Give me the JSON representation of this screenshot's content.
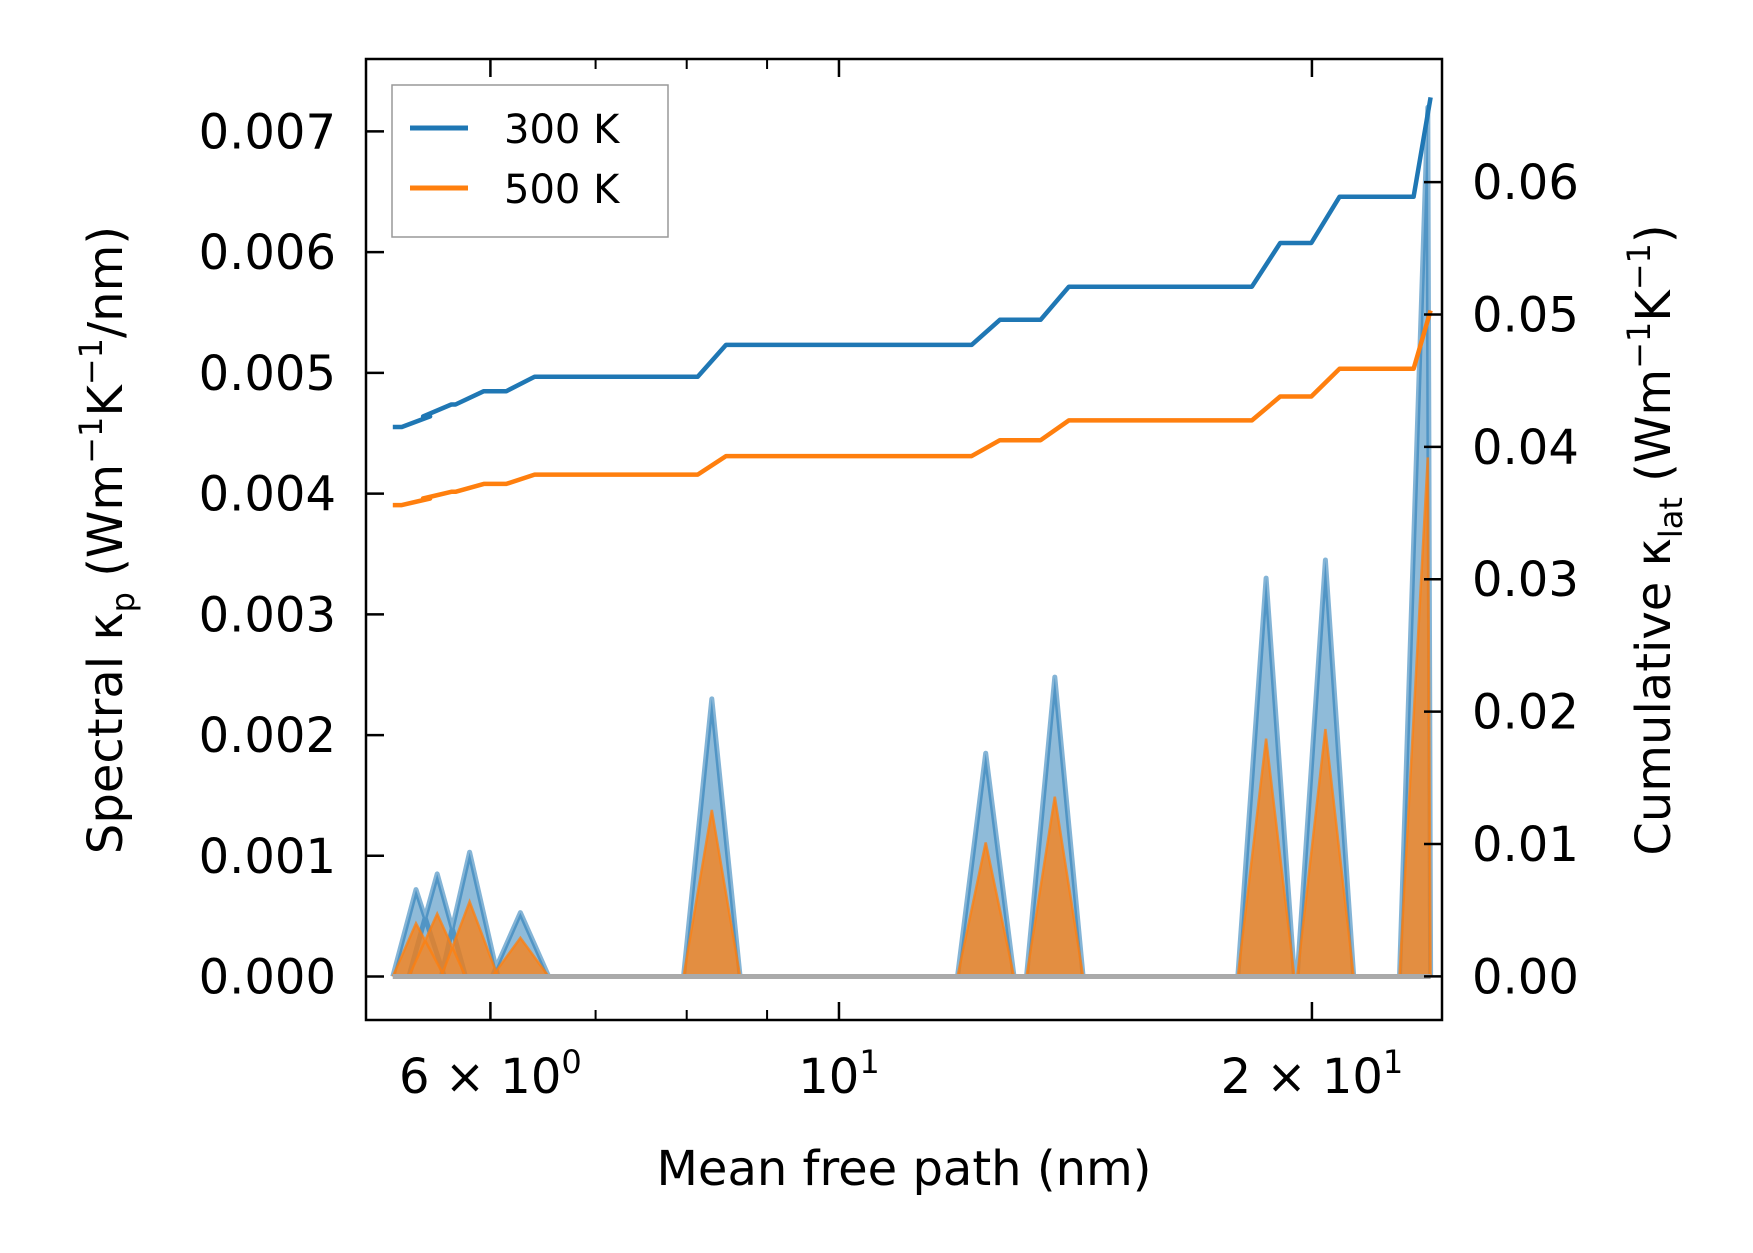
{
  "chart_data": {
    "type": "line",
    "xscale": "log",
    "xlim": [
      5.0,
      24.2
    ],
    "ylim": [
      -0.00036,
      0.0076
    ],
    "y2lim": [
      -0.0033,
      0.0693
    ],
    "xlabel": "Mean free path (nm)",
    "ylabel": {
      "prefix": "Spectral κ",
      "sub": "p",
      "unit_open": " (Wm",
      "sup1": "−1",
      "unit_mid": "K",
      "sup2": "−1",
      "unit_close": "/nm)"
    },
    "y2label": {
      "prefix": "Cumulative κ",
      "sub": "lat",
      "unit_open": " (Wm",
      "sup1": "−1",
      "unit_mid": "K",
      "sup2": "−1",
      "unit_close": ")"
    },
    "x_ticks": [
      {
        "value": 6,
        "mantissa": "6",
        "base": "10",
        "exp": "0"
      },
      {
        "value": 10,
        "mantissa": "",
        "base": "10",
        "exp": "1"
      },
      {
        "value": 20,
        "mantissa": "2",
        "base": "10",
        "exp": "1"
      }
    ],
    "x_minor_ticks": [
      7,
      8,
      9
    ],
    "y_ticks": [
      {
        "value": 0.0,
        "label": "0.000"
      },
      {
        "value": 0.001,
        "label": "0.001"
      },
      {
        "value": 0.002,
        "label": "0.002"
      },
      {
        "value": 0.003,
        "label": "0.003"
      },
      {
        "value": 0.004,
        "label": "0.004"
      },
      {
        "value": 0.005,
        "label": "0.005"
      },
      {
        "value": 0.006,
        "label": "0.006"
      },
      {
        "value": 0.007,
        "label": "0.007"
      }
    ],
    "y2_ticks": [
      {
        "value": 0.0,
        "label": "0.00"
      },
      {
        "value": 0.01,
        "label": "0.01"
      },
      {
        "value": 0.02,
        "label": "0.02"
      },
      {
        "value": 0.03,
        "label": "0.03"
      },
      {
        "value": 0.04,
        "label": "0.04"
      },
      {
        "value": 0.05,
        "label": "0.05"
      },
      {
        "value": 0.06,
        "label": "0.06"
      }
    ],
    "legend": {
      "location": "upper-left",
      "entries": [
        "300 K",
        "500 K"
      ]
    },
    "x_range": [
      5.2,
      23.8
    ],
    "peaks": [
      {
        "x": 5.38,
        "h300": 0.00072,
        "h500": 0.00044
      },
      {
        "x": 5.55,
        "h300": 0.00085,
        "h500": 0.00052
      },
      {
        "x": 5.82,
        "h300": 0.00103,
        "h500": 0.00062
      },
      {
        "x": 6.27,
        "h300": 0.00053,
        "h500": 0.00032
      },
      {
        "x": 8.3,
        "h300": 0.0023,
        "h500": 0.00138
      },
      {
        "x": 12.4,
        "h300": 0.00185,
        "h500": 0.00111
      },
      {
        "x": 13.72,
        "h300": 0.00248,
        "h500": 0.00149
      },
      {
        "x": 18.7,
        "h300": 0.0033,
        "h500": 0.00197
      },
      {
        "x": 20.4,
        "h300": 0.00345,
        "h500": 0.00205
      },
      {
        "x": 23.7,
        "h300": 0.0072,
        "h500": 0.0043
      }
    ],
    "series": [
      {
        "name": "300 K",
        "color": "#1f77b4",
        "cumulative_start": 0.0415,
        "cumulative_steps": [
          {
            "x": 5.38,
            "value": 0.0423
          },
          {
            "x": 5.55,
            "value": 0.0432
          },
          {
            "x": 5.82,
            "value": 0.0442
          },
          {
            "x": 6.27,
            "value": 0.0453
          },
          {
            "x": 8.3,
            "value": 0.0477
          },
          {
            "x": 12.4,
            "value": 0.0496
          },
          {
            "x": 13.72,
            "value": 0.0521
          },
          {
            "x": 18.7,
            "value": 0.0554
          },
          {
            "x": 20.4,
            "value": 0.0589
          },
          {
            "x": 23.7,
            "value": 0.0664
          }
        ]
      },
      {
        "name": "500 K",
        "color": "#ff7f0e",
        "cumulative_start": 0.0356,
        "cumulative_steps": [
          {
            "x": 5.38,
            "value": 0.0361
          },
          {
            "x": 5.55,
            "value": 0.0366
          },
          {
            "x": 5.82,
            "value": 0.0372
          },
          {
            "x": 6.27,
            "value": 0.0379
          },
          {
            "x": 8.3,
            "value": 0.0393
          },
          {
            "x": 12.4,
            "value": 0.0405
          },
          {
            "x": 13.72,
            "value": 0.042
          },
          {
            "x": 18.7,
            "value": 0.0438
          },
          {
            "x": 20.4,
            "value": 0.0459
          },
          {
            "x": 23.7,
            "value": 0.0503
          }
        ]
      }
    ]
  }
}
